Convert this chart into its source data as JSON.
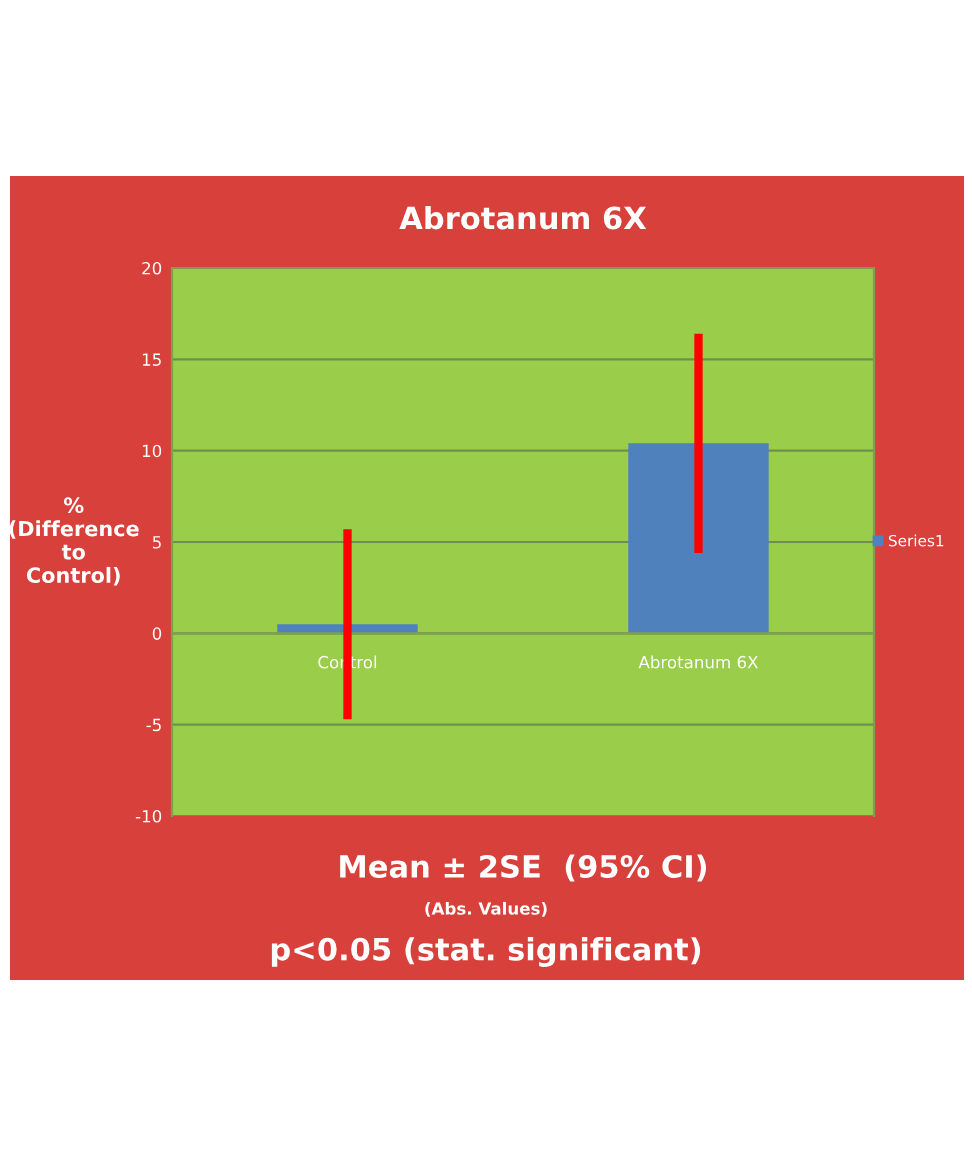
{
  "chart_data": {
    "type": "bar",
    "title": "Abrotanum 6X",
    "xlabel": "Mean ± 2SE  (95% CI)",
    "ylabel": "%\n(Difference\nto\nControl)",
    "categories": [
      "Control",
      "Abrotanum 6X"
    ],
    "series": [
      {
        "name": "Series1",
        "color": "#4f81bd",
        "values": [
          0.5,
          10.4
        ],
        "errors": [
          5.2,
          6.0
        ]
      }
    ],
    "ylim": [
      -10,
      20
    ],
    "yticks": [
      -10,
      -5,
      0,
      5,
      10,
      15,
      20
    ],
    "grid": "y",
    "legend": "right",
    "annotations": [
      "(Abs. Values)",
      "p<0.05 (stat. significant)"
    ]
  }
}
